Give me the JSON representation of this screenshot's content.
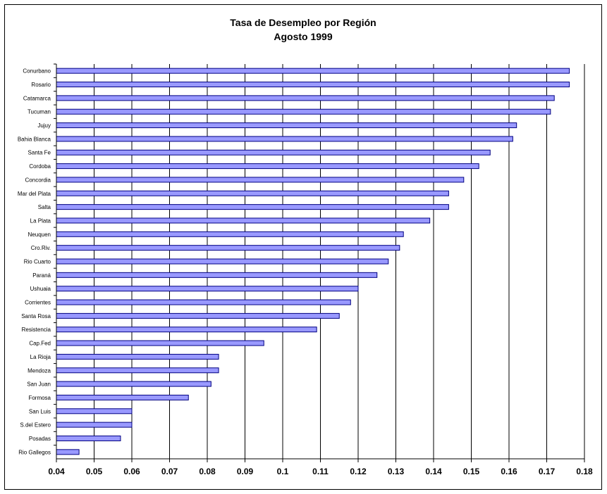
{
  "chart_data": {
    "type": "bar",
    "orientation": "horizontal",
    "title": "Tasa de Desempleo por Región",
    "subtitle": "Agosto 1999",
    "categories": [
      "Conurbano",
      "Rosario",
      "Catamarca",
      "Tucuman",
      "Jujuy",
      "Bahia Blanca",
      "Santa Fe",
      "Cordoba",
      "Concordia",
      "Mar del Plata",
      "Salta",
      "La Plata",
      "Neuquen",
      "Cro.Riv.",
      "Rio Cuarto",
      "Paraná",
      "Ushuaia",
      "Corrientes",
      "Santa Rosa",
      "Resistencia",
      "Cap.Fed",
      "La Rioja",
      "Mendoza",
      "San Juan",
      "Formosa",
      "San Luis",
      "S.del Estero",
      "Posadas",
      "Rio Gallegos"
    ],
    "values": [
      0.176,
      0.176,
      0.172,
      0.171,
      0.162,
      0.161,
      0.155,
      0.152,
      0.148,
      0.144,
      0.144,
      0.139,
      0.132,
      0.131,
      0.128,
      0.125,
      0.12,
      0.118,
      0.115,
      0.109,
      0.095,
      0.083,
      0.083,
      0.081,
      0.075,
      0.06,
      0.06,
      0.057,
      0.046
    ],
    "xlim": [
      0.04,
      0.18
    ],
    "xticks": [
      "0.04",
      "0.05",
      "0.06",
      "0.07",
      "0.08",
      "0.09",
      "0.1",
      "0.11",
      "0.12",
      "0.13",
      "0.14",
      "0.15",
      "0.16",
      "0.17",
      "0.18"
    ],
    "grid": "vertical major gridlines",
    "legend": "none",
    "bar_color": "#9999ff",
    "bar_edge_color": "#000080"
  }
}
